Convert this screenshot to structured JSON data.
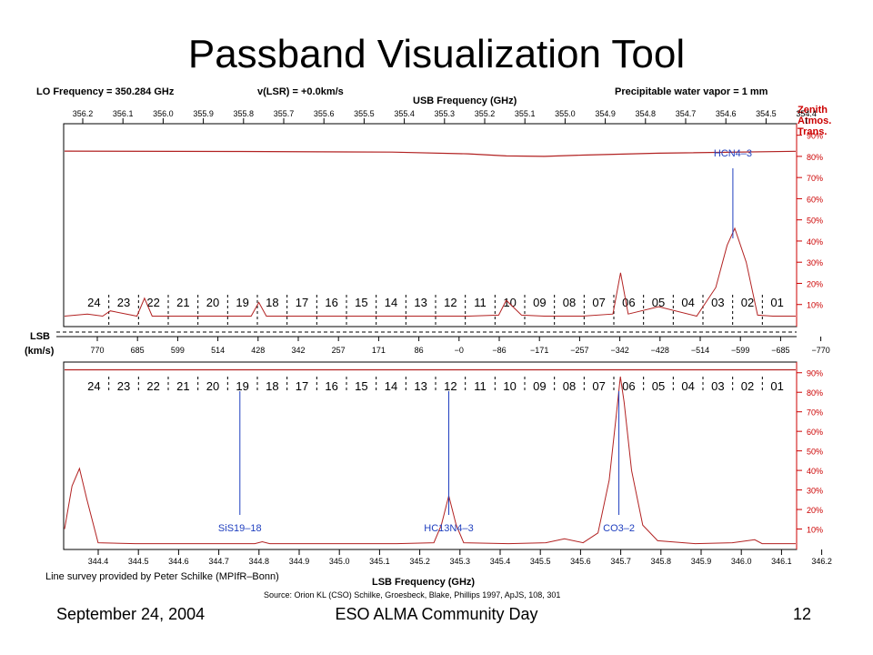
{
  "slide": {
    "title": "Passband Visualization Tool",
    "footer_left": "September 24, 2004",
    "footer_center": "ESO ALMA Community Day",
    "footer_right": "12"
  },
  "header": {
    "lo": "LO Frequency = 350.284 GHz",
    "vlsr": "v(LSR) = +0.0km/s",
    "usb_axis": "USB Frequency (GHz)",
    "pwv": "Precipitable water vapor = 1 mm",
    "zenith": [
      "Zenith",
      "Atmos.",
      "Trans."
    ]
  },
  "lsb_vel_label": [
    "LSB",
    "(km/s)"
  ],
  "colors": {
    "spectrum": "#b22222",
    "line_marker": "#1f3fbf",
    "text_red": "#cc0000",
    "axis": "#000000"
  },
  "chart_data": [
    {
      "type": "line",
      "panel": "upper",
      "x_axis_label": "USB Frequency (GHz)",
      "x_ticks": [
        "356.2",
        "356.1",
        "356.0",
        "355.9",
        "355.8",
        "355.7",
        "355.6",
        "355.5",
        "355.4",
        "355.3",
        "355.2",
        "355.1",
        "355.0",
        "354.9",
        "354.8",
        "354.7",
        "354.6",
        "354.5",
        "354.4"
      ],
      "xlim": [
        356.26,
        354.34
      ],
      "right_axis_ticks": [
        "90%",
        "80%",
        "70%",
        "60%",
        "50%",
        "40%",
        "30%",
        "20%",
        "10%"
      ],
      "ylim": [
        0,
        95
      ],
      "channels": [
        "24",
        "23",
        "22",
        "21",
        "20",
        "19",
        "18",
        "17",
        "16",
        "15",
        "14",
        "13",
        "12",
        "11",
        "10",
        "09",
        "08",
        "07",
        "06",
        "05",
        "04",
        "03",
        "02",
        "01"
      ],
      "transmission_series": {
        "name": "Zenith Atmos. Trans.",
        "x": [
          356.26,
          355.8,
          355.4,
          355.2,
          355.1,
          355.0,
          354.9,
          354.7,
          354.34
        ],
        "y": [
          82.5,
          82.3,
          82.0,
          81.2,
          80.2,
          80.0,
          80.6,
          81.5,
          82.4
        ]
      },
      "spectrum_series": {
        "x": [
          356.26,
          356.2,
          356.16,
          356.14,
          356.07,
          356.05,
          356.03,
          355.9,
          355.77,
          355.75,
          355.73,
          355.6,
          355.5,
          355.4,
          355.3,
          355.2,
          355.12,
          355.1,
          355.06,
          355.0,
          354.9,
          354.82,
          354.8,
          354.78,
          354.7,
          354.6,
          354.55,
          354.52,
          354.5,
          354.47,
          354.44,
          354.4,
          354.34
        ],
        "y": [
          4.5,
          5.5,
          4.5,
          7.0,
          4.5,
          13.0,
          4.5,
          4.5,
          4.5,
          11.0,
          4.5,
          4.5,
          4.5,
          4.5,
          4.5,
          4.5,
          5.0,
          12.0,
          5.0,
          4.5,
          4.5,
          5.5,
          25.0,
          5.5,
          9.0,
          4.5,
          18.0,
          38.0,
          46.0,
          30.0,
          5.0,
          4.5,
          4.5
        ]
      },
      "line_labels": [
        {
          "label": "HCN4–3",
          "freq": 354.505
        }
      ]
    },
    {
      "type": "line",
      "panel": "lower",
      "x_axis_label": "LSB Frequency (GHz)",
      "x_ticks": [
        "344.4",
        "344.5",
        "344.6",
        "344.7",
        "344.8",
        "344.9",
        "345.0",
        "345.1",
        "345.2",
        "345.3",
        "345.4",
        "345.5",
        "345.6",
        "345.7",
        "345.8",
        "345.9",
        "346.0",
        "346.1",
        "346.2"
      ],
      "xlim": [
        344.31,
        346.27
      ],
      "velocity_ticks": [
        "770",
        "685",
        "599",
        "514",
        "428",
        "342",
        "257",
        "171",
        "86",
        "−0",
        "−86",
        "−171",
        "−257",
        "−342",
        "−428",
        "−514",
        "−599",
        "−685",
        "−770"
      ],
      "right_axis_ticks": [
        "90%",
        "80%",
        "70%",
        "60%",
        "50%",
        "40%",
        "30%",
        "20%",
        "10%"
      ],
      "ylim": [
        0,
        95
      ],
      "channels": [
        "24",
        "23",
        "22",
        "21",
        "20",
        "19",
        "18",
        "17",
        "16",
        "15",
        "14",
        "13",
        "12",
        "11",
        "10",
        "09",
        "08",
        "07",
        "06",
        "05",
        "04",
        "03",
        "02",
        "01"
      ],
      "transmission_series": {
        "name": "Zenith Atmos. Trans.",
        "x": [
          344.31,
          346.27
        ],
        "y": [
          91.5,
          91.5
        ]
      },
      "spectrum_series": {
        "x": [
          344.31,
          344.33,
          344.35,
          344.37,
          344.4,
          344.5,
          344.6,
          344.82,
          344.84,
          344.86,
          345.0,
          345.2,
          345.3,
          345.32,
          345.34,
          345.36,
          345.38,
          345.5,
          345.6,
          345.65,
          345.7,
          345.74,
          345.77,
          345.79,
          345.8,
          345.81,
          345.83,
          345.86,
          345.9,
          346.0,
          346.1,
          346.16,
          346.18,
          346.2,
          346.27
        ],
        "y": [
          10.0,
          32.0,
          41.0,
          25.0,
          3.0,
          2.5,
          2.5,
          2.5,
          3.5,
          2.5,
          2.5,
          2.5,
          3.0,
          12.0,
          27.0,
          12.0,
          3.0,
          2.5,
          3.0,
          5.0,
          3.0,
          8.0,
          35.0,
          70.0,
          88.0,
          75.0,
          40.0,
          12.0,
          4.0,
          2.5,
          3.0,
          4.5,
          2.5,
          2.5,
          2.5
        ]
      },
      "line_labels": [
        {
          "label": "SiS19–18",
          "freq": 344.78
        },
        {
          "label": "HC13N4–3",
          "freq": 345.34
        },
        {
          "label": "CO3–2",
          "freq": 345.796
        }
      ]
    }
  ],
  "bottom": {
    "survey_credit": "Line survey provided by Peter Schilke (MPIfR–Bonn)",
    "lsb_axis": "LSB Frequency (GHz)",
    "source": "Source: Orion KL (CSO) Schilke, Groesbeck, Blake, Phillips 1997, ApJS, 108, 301"
  }
}
